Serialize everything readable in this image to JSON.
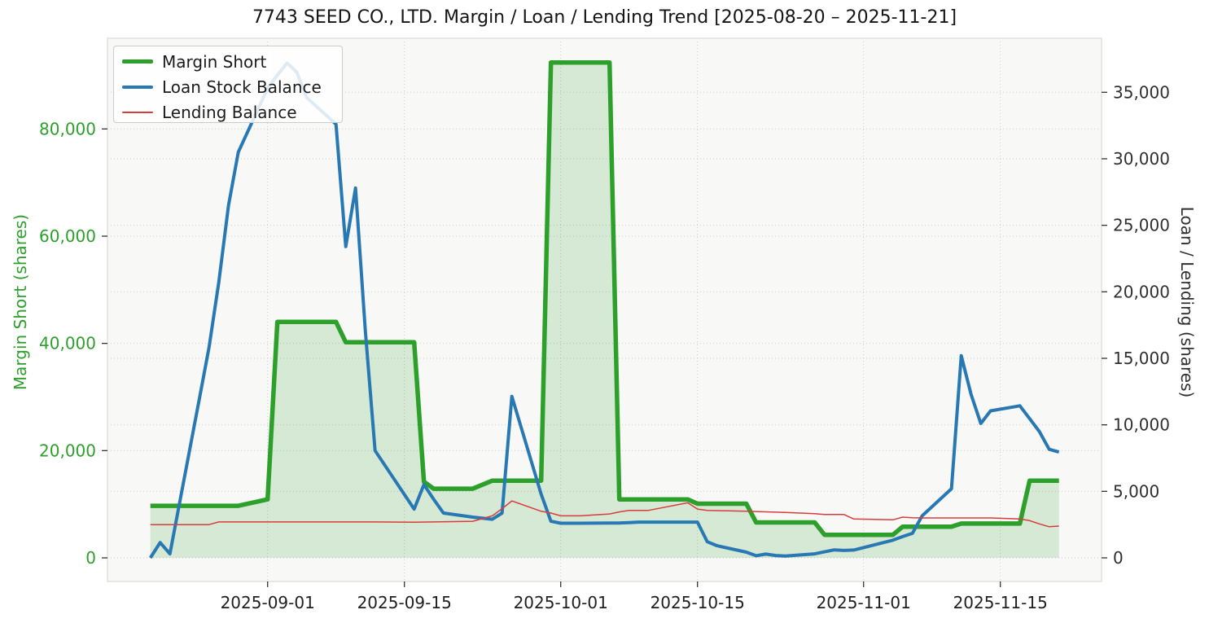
{
  "title": "7743 SEED CO., LTD. Margin / Loan / Lending Trend [2025-08-20 – 2025-11-21]",
  "legend": {
    "position": "upper-left",
    "entries": [
      "Margin Short",
      "Loan Stock Balance",
      "Lending Balance"
    ]
  },
  "chart_data": {
    "type": "line",
    "title": "7743 SEED CO., LTD. Margin / Loan / Lending Trend [2025-08-20 – 2025-11-21]",
    "date_range": [
      "2025-08-20",
      "2025-11-21"
    ],
    "grid": {
      "style": "dotted",
      "color": "#cbcbcb",
      "background": "#f8f8f7",
      "spine": "#e3e3e3"
    },
    "axes": {
      "x": {
        "ticks": [
          {
            "date": "2025-09-01",
            "label": "2025-09-01"
          },
          {
            "date": "2025-09-15",
            "label": "2025-09-15"
          },
          {
            "date": "2025-10-01",
            "label": "2025-10-01"
          },
          {
            "date": "2025-10-15",
            "label": "2025-10-15"
          },
          {
            "date": "2025-11-01",
            "label": "2025-11-01"
          },
          {
            "date": "2025-11-15",
            "label": "2025-11-15"
          }
        ]
      },
      "left": {
        "label": "Margin Short (shares)",
        "color": "#2da02c",
        "ylim": [
          0,
          96000
        ],
        "ticks": [
          {
            "value": 0,
            "label": "0"
          },
          {
            "value": 20000,
            "label": "20,000"
          },
          {
            "value": 40000,
            "label": "40,000"
          },
          {
            "value": 60000,
            "label": "60,000"
          },
          {
            "value": 80000,
            "label": "80,000"
          }
        ]
      },
      "right": {
        "label": "Loan / Lending (shares)",
        "color": "#2f2f2f",
        "ylim": [
          0,
          39000
        ],
        "ticks": [
          {
            "value": 0,
            "label": "0"
          },
          {
            "value": 5000,
            "label": "5,000"
          },
          {
            "value": 10000,
            "label": "10,000"
          },
          {
            "value": 15000,
            "label": "15,000"
          },
          {
            "value": 20000,
            "label": "20,000"
          },
          {
            "value": 25000,
            "label": "25,000"
          },
          {
            "value": 30000,
            "label": "30,000"
          },
          {
            "value": 35000,
            "label": "35,000"
          }
        ]
      }
    },
    "series": [
      {
        "name": "Margin Short",
        "axis": "left",
        "color": "#2da02c",
        "width": 5.5,
        "fill_color": "rgba(45,160,44,0.17)",
        "points": [
          [
            "2025-08-20",
            9700
          ],
          [
            "2025-08-29",
            9700
          ],
          [
            "2025-09-01",
            10900
          ],
          [
            "2025-09-02",
            44000
          ],
          [
            "2025-09-08",
            44000
          ],
          [
            "2025-09-09",
            40200
          ],
          [
            "2025-09-16",
            40200
          ],
          [
            "2025-09-17",
            14200
          ],
          [
            "2025-09-18",
            12900
          ],
          [
            "2025-09-22",
            12900
          ],
          [
            "2025-09-24",
            14400
          ],
          [
            "2025-09-29",
            14400
          ],
          [
            "2025-09-30",
            92400
          ],
          [
            "2025-10-06",
            92400
          ],
          [
            "2025-10-07",
            10900
          ],
          [
            "2025-10-14",
            10900
          ],
          [
            "2025-10-15",
            10100
          ],
          [
            "2025-10-20",
            10100
          ],
          [
            "2025-10-21",
            6600
          ],
          [
            "2025-10-27",
            6600
          ],
          [
            "2025-10-28",
            4300
          ],
          [
            "2025-11-04",
            4300
          ],
          [
            "2025-11-05",
            5800
          ],
          [
            "2025-11-10",
            5800
          ],
          [
            "2025-11-11",
            6400
          ],
          [
            "2025-11-17",
            6400
          ],
          [
            "2025-11-18",
            14400
          ],
          [
            "2025-11-21",
            14400
          ]
        ]
      },
      {
        "name": "Loan Stock Balance",
        "axis": "right",
        "color": "#2878b4",
        "width": 4,
        "points": [
          [
            "2025-08-20",
            0
          ],
          [
            "2025-08-21",
            1150
          ],
          [
            "2025-08-22",
            300
          ],
          [
            "2025-08-25",
            11900
          ],
          [
            "2025-08-26",
            15800
          ],
          [
            "2025-08-27",
            20700
          ],
          [
            "2025-08-28",
            26500
          ],
          [
            "2025-08-29",
            30500
          ],
          [
            "2025-09-01",
            35300
          ],
          [
            "2025-09-02",
            36300
          ],
          [
            "2025-09-03",
            37200
          ],
          [
            "2025-09-04",
            36500
          ],
          [
            "2025-09-05",
            34600
          ],
          [
            "2025-09-08",
            32600
          ],
          [
            "2025-09-09",
            23400
          ],
          [
            "2025-09-10",
            27800
          ],
          [
            "2025-09-11",
            17100
          ],
          [
            "2025-09-12",
            8060
          ],
          [
            "2025-09-16",
            3670
          ],
          [
            "2025-09-17",
            5510
          ],
          [
            "2025-09-18",
            4400
          ],
          [
            "2025-09-19",
            3370
          ],
          [
            "2025-09-22",
            3060
          ],
          [
            "2025-09-24",
            2900
          ],
          [
            "2025-09-25",
            3370
          ],
          [
            "2025-09-26",
            12140
          ],
          [
            "2025-09-29",
            4790
          ],
          [
            "2025-09-30",
            2750
          ],
          [
            "2025-10-01",
            2600
          ],
          [
            "2025-10-02",
            2600
          ],
          [
            "2025-10-03",
            2600
          ],
          [
            "2025-10-06",
            2620
          ],
          [
            "2025-10-07",
            2620
          ],
          [
            "2025-10-08",
            2650
          ],
          [
            "2025-10-09",
            2690
          ],
          [
            "2025-10-10",
            2690
          ],
          [
            "2025-10-14",
            2690
          ],
          [
            "2025-10-15",
            2690
          ],
          [
            "2025-10-16",
            1210
          ],
          [
            "2025-10-17",
            910
          ],
          [
            "2025-10-20",
            430
          ],
          [
            "2025-10-21",
            160
          ],
          [
            "2025-10-22",
            280
          ],
          [
            "2025-10-23",
            180
          ],
          [
            "2025-10-24",
            140
          ],
          [
            "2025-10-27",
            300
          ],
          [
            "2025-10-28",
            450
          ],
          [
            "2025-10-29",
            600
          ],
          [
            "2025-10-30",
            560
          ],
          [
            "2025-10-31",
            590
          ],
          [
            "2025-11-04",
            1330
          ],
          [
            "2025-11-05",
            1600
          ],
          [
            "2025-11-06",
            1840
          ],
          [
            "2025-11-07",
            3160
          ],
          [
            "2025-11-10",
            5200
          ],
          [
            "2025-11-11",
            15200
          ],
          [
            "2025-11-12",
            12300
          ],
          [
            "2025-11-13",
            10100
          ],
          [
            "2025-11-14",
            11050
          ],
          [
            "2025-11-17",
            11430
          ],
          [
            "2025-11-18",
            10460
          ],
          [
            "2025-11-19",
            9490
          ],
          [
            "2025-11-20",
            8160
          ],
          [
            "2025-11-21",
            7950
          ]
        ]
      },
      {
        "name": "Lending Balance",
        "axis": "right",
        "color": "#d83c3c",
        "width": 1.5,
        "points": [
          [
            "2025-08-20",
            2500
          ],
          [
            "2025-08-26",
            2500
          ],
          [
            "2025-08-27",
            2700
          ],
          [
            "2025-09-12",
            2700
          ],
          [
            "2025-09-16",
            2680
          ],
          [
            "2025-09-22",
            2750
          ],
          [
            "2025-09-24",
            3160
          ],
          [
            "2025-09-25",
            3700
          ],
          [
            "2025-09-26",
            4280
          ],
          [
            "2025-09-29",
            3500
          ],
          [
            "2025-09-30",
            3370
          ],
          [
            "2025-10-01",
            3160
          ],
          [
            "2025-10-03",
            3160
          ],
          [
            "2025-10-06",
            3300
          ],
          [
            "2025-10-07",
            3450
          ],
          [
            "2025-10-08",
            3570
          ],
          [
            "2025-10-10",
            3570
          ],
          [
            "2025-10-14",
            4140
          ],
          [
            "2025-10-15",
            3670
          ],
          [
            "2025-10-16",
            3570
          ],
          [
            "2025-10-20",
            3500
          ],
          [
            "2025-10-24",
            3410
          ],
          [
            "2025-10-27",
            3320
          ],
          [
            "2025-10-28",
            3260
          ],
          [
            "2025-10-30",
            3260
          ],
          [
            "2025-10-31",
            2920
          ],
          [
            "2025-11-04",
            2860
          ],
          [
            "2025-11-05",
            3060
          ],
          [
            "2025-11-06",
            3020
          ],
          [
            "2025-11-07",
            3000
          ],
          [
            "2025-11-14",
            3000
          ],
          [
            "2025-11-17",
            2920
          ],
          [
            "2025-11-18",
            2800
          ],
          [
            "2025-11-19",
            2550
          ],
          [
            "2025-11-20",
            2340
          ],
          [
            "2025-11-21",
            2390
          ]
        ]
      }
    ]
  }
}
